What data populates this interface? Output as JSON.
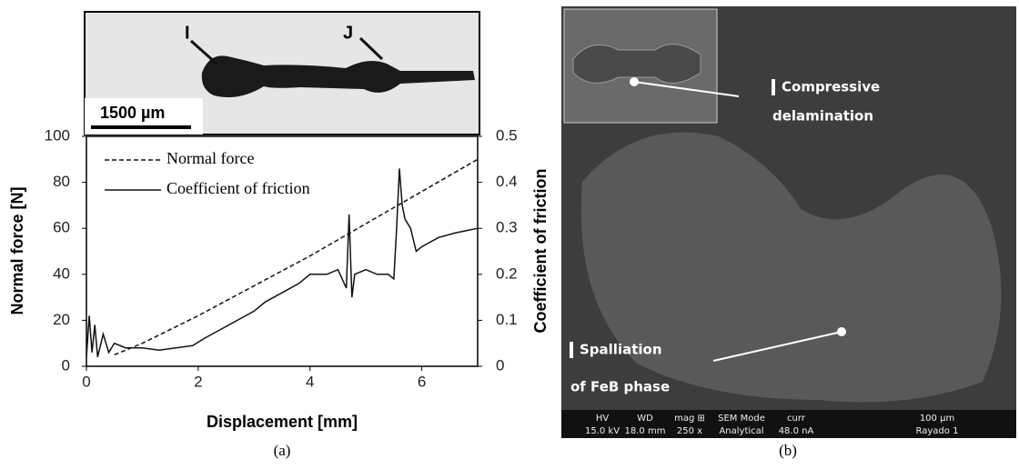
{
  "chart_data": {
    "type": "line",
    "xlabel": "Displacement [mm]",
    "ylabel": "Normal force  [N]",
    "y2label": "Coefficient of friction",
    "xlim": [
      0,
      7
    ],
    "xticks": [
      0,
      2,
      4,
      6
    ],
    "ylim": [
      0,
      100
    ],
    "yticks": [
      0,
      20,
      40,
      60,
      80,
      100
    ],
    "y2lim": [
      0,
      0.5
    ],
    "y2ticks": [
      0,
      0.1,
      0.2,
      0.3,
      0.4,
      0.5
    ],
    "grid": false,
    "legend": "upper left",
    "series": [
      {
        "name": "Normal force",
        "color": "#111111",
        "line_style": "dashed",
        "x": [
          0.5,
          1,
          2,
          3,
          4,
          5,
          6,
          7
        ],
        "values": [
          5,
          10,
          22,
          35,
          48,
          62,
          76,
          90
        ]
      },
      {
        "name": "Coefficient of friction",
        "color": "#111111",
        "line_style": "solid",
        "axis": "y2",
        "x": [
          0,
          0.05,
          0.1,
          0.15,
          0.2,
          0.3,
          0.4,
          0.5,
          0.7,
          1,
          1.3,
          1.6,
          1.9,
          2.1,
          2.4,
          2.7,
          3,
          3.2,
          3.5,
          3.8,
          4,
          4.3,
          4.5,
          4.65,
          4.7,
          4.75,
          4.8,
          5,
          5.2,
          5.4,
          5.5,
          5.55,
          5.6,
          5.65,
          5.7,
          5.8,
          5.9,
          6,
          6.3,
          6.6,
          7
        ],
        "values": [
          0.02,
          0.11,
          0.03,
          0.09,
          0.02,
          0.07,
          0.03,
          0.05,
          0.04,
          0.04,
          0.035,
          0.04,
          0.045,
          0.06,
          0.08,
          0.1,
          0.12,
          0.14,
          0.16,
          0.18,
          0.2,
          0.2,
          0.21,
          0.17,
          0.33,
          0.15,
          0.2,
          0.21,
          0.2,
          0.2,
          0.19,
          0.3,
          0.43,
          0.35,
          0.32,
          0.3,
          0.25,
          0.26,
          0.28,
          0.29,
          0.3
        ]
      }
    ]
  },
  "panel_a": {
    "caption": "(a)",
    "marker_i": "I",
    "marker_j": "J",
    "scale_bar": "1500 µm"
  },
  "panel_b": {
    "caption": "(b)",
    "label_1": [
      "Compressive",
      "delamination"
    ],
    "label_2": [
      "Spalliation",
      "of FeB phase"
    ],
    "info_bar": {
      "hv": [
        "HV",
        "15.0 kV"
      ],
      "wd": [
        "WD",
        "18.0 mm"
      ],
      "mag": [
        "mag ⊞",
        "250 x"
      ],
      "mode": [
        "SEM Mode",
        "Analytical"
      ],
      "curr": [
        "curr",
        "48.0 nA"
      ],
      "scale": "100 µm",
      "name": "Rayado 1"
    }
  }
}
